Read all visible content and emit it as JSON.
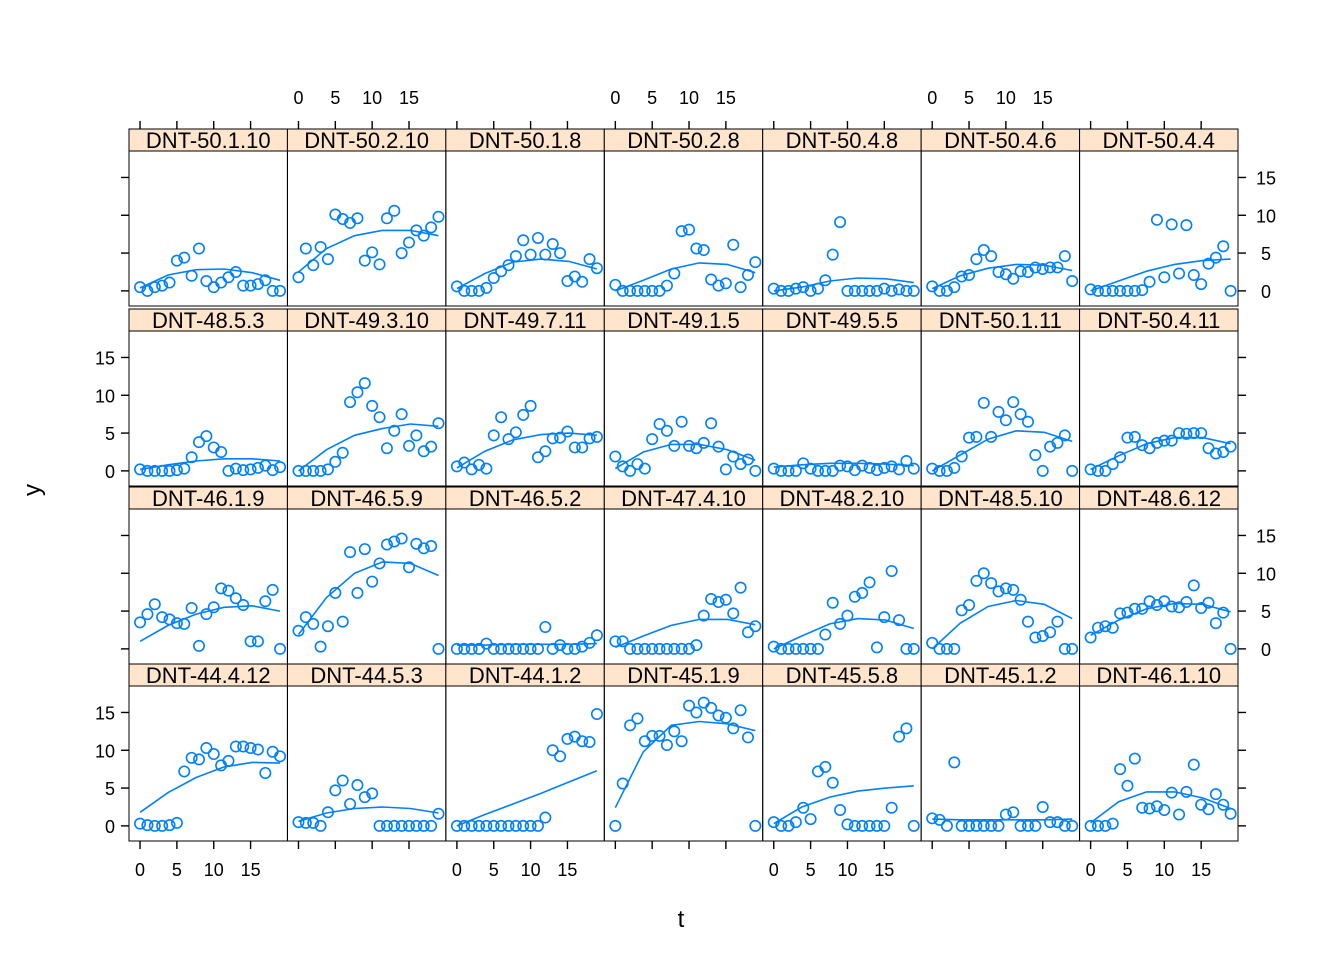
{
  "chart_data": {
    "type": "scatter",
    "layout": {
      "columns": 7,
      "rows": 4,
      "order": "bottom-left to top-right"
    },
    "xlabel": "t",
    "ylabel": "y",
    "xlim": [
      -1.5,
      20
    ],
    "ylim": [
      -2,
      18.5
    ],
    "x_ticks": [
      0,
      5,
      10,
      15
    ],
    "y_ticks": [
      0,
      5,
      10,
      15
    ],
    "x_ticks_bottom_columns": [
      0,
      2,
      4,
      6
    ],
    "x_ticks_top_columns": [
      1,
      3,
      5
    ],
    "y_ticks_left_rows": [
      0,
      2
    ],
    "y_ticks_right_rows": [
      1,
      3
    ],
    "colors": {
      "points": "#0080ff",
      "strip": "#ffe5cc",
      "frame": "#000000"
    },
    "panels": [
      {
        "label": "DNT-44.4.12",
        "y": [
          0.3,
          0.1,
          0,
          0,
          0.1,
          0.4,
          7.2,
          9,
          8.8,
          10.3,
          9.5,
          8,
          8.6,
          10.5,
          10.5,
          10.3,
          10.1,
          7,
          9.8,
          9.2
        ],
        "fit": [
          1.8,
          4.4,
          6.4,
          7.8,
          8.4,
          8.3
        ]
      },
      {
        "label": "DNT-44.5.3",
        "y": [
          0.5,
          0.4,
          0.4,
          0,
          1.8,
          4.7,
          6,
          2.9,
          5.4,
          3.8,
          4.3,
          0,
          0,
          0,
          0,
          0,
          0,
          0,
          0,
          1.6
        ],
        "fit": [
          0.6,
          1.7,
          2.3,
          2.5,
          2.3,
          1.7
        ]
      },
      {
        "label": "DNT-44.1.2",
        "y": [
          0,
          0,
          0,
          0,
          0,
          0,
          0,
          0,
          0,
          0,
          0,
          0,
          1.1,
          10,
          9.2,
          11.5,
          11.8,
          11.2,
          11.1,
          14.8
        ],
        "fit": [
          0,
          1.5,
          2.9,
          4.3,
          5.8,
          7.3
        ]
      },
      {
        "label": "DNT-45.1.9",
        "y": [
          0,
          5.6,
          13.3,
          14.2,
          11.2,
          11.9,
          11.9,
          10.7,
          12.5,
          11.2,
          15.9,
          15,
          16.3,
          15.6,
          14.6,
          14.3,
          12.9,
          15.3,
          11.7,
          0
        ],
        "fit": [
          2.4,
          9.8,
          13.3,
          13.8,
          13.5,
          12.6
        ]
      },
      {
        "label": "DNT-45.5.8",
        "y": [
          0.5,
          0,
          0,
          0.5,
          2.4,
          0.9,
          7.2,
          7.8,
          5.7,
          2.1,
          0.2,
          0,
          0,
          0,
          0,
          0,
          2.4,
          11.8,
          12.9,
          0
        ],
        "fit": [
          0.3,
          2.5,
          3.8,
          4.6,
          5,
          5.3
        ]
      },
      {
        "label": "DNT-45.1.2",
        "y": [
          1,
          0.8,
          0,
          8.4,
          0,
          0,
          0,
          0,
          0,
          0,
          1.5,
          1.8,
          0,
          0,
          0,
          2.5,
          0.5,
          0.5,
          0,
          0
        ],
        "fit": [
          0.9,
          0.8,
          0.8,
          0.8,
          0.8,
          0.9
        ]
      },
      {
        "label": "DNT-46.1.10",
        "y": [
          0,
          0,
          0,
          0.3,
          7.5,
          5.3,
          8.9,
          2.4,
          2.3,
          2.6,
          2.1,
          4.4,
          1.5,
          4.5,
          8.1,
          2.8,
          2.2,
          4.2,
          2.8,
          1.6
        ],
        "fit": [
          0.4,
          3.2,
          4.5,
          4.5,
          3.7,
          2.3
        ]
      },
      {
        "label": "DNT-46.1.9",
        "y": [
          3.5,
          4.6,
          5.9,
          4.2,
          3.9,
          3.4,
          3.3,
          5.4,
          0.4,
          4.6,
          5.5,
          8,
          7.7,
          6.7,
          5.8,
          1,
          1,
          6.3,
          7.8,
          0
        ],
        "fit": [
          1,
          3.1,
          4.6,
          5.5,
          5.7,
          5
        ]
      },
      {
        "label": "DNT-46.5.9",
        "y": [
          2.4,
          4.2,
          3.3,
          0.3,
          3,
          7.4,
          3.6,
          12.8,
          7.4,
          13.2,
          8.9,
          11.3,
          13.8,
          14.2,
          14.6,
          10.8,
          13.9,
          13.3,
          13.6,
          0
        ],
        "fit": [
          1.9,
          6.8,
          10,
          11.5,
          11.3,
          9.7
        ]
      },
      {
        "label": "DNT-46.5.2",
        "y": [
          0,
          0,
          0,
          0,
          0.7,
          0,
          0,
          0,
          0,
          0,
          0,
          0,
          2.9,
          0,
          0.5,
          0,
          0,
          0.3,
          0.8,
          1.8
        ],
        "fit": [
          0.5,
          0.5,
          0.6,
          0.6,
          0.6,
          0.7
        ]
      },
      {
        "label": "DNT-47.4.10",
        "y": [
          1,
          1,
          0,
          0,
          0,
          0,
          0,
          0,
          0,
          0,
          0,
          0.5,
          4.4,
          6.6,
          6.2,
          6.5,
          4.7,
          8.1,
          2.2,
          3
        ],
        "fit": [
          0.2,
          1.7,
          3.1,
          3.9,
          3.9,
          3.2
        ]
      },
      {
        "label": "DNT-48.2.10",
        "y": [
          0.3,
          0,
          0,
          0,
          0,
          0,
          0,
          1.9,
          6.1,
          3.3,
          4.4,
          6.9,
          7.4,
          8.8,
          0.2,
          4.2,
          10.3,
          3.8,
          0,
          0
        ],
        "fit": [
          0,
          1.7,
          3.3,
          4,
          3.8,
          2.7
        ]
      },
      {
        "label": "DNT-48.5.10",
        "y": [
          0.8,
          0,
          0,
          0,
          5.1,
          5.8,
          9,
          10,
          8.7,
          7.6,
          8,
          7.8,
          6.5,
          3.6,
          1.5,
          1.7,
          2.2,
          3.6,
          0,
          0
        ],
        "fit": [
          0,
          3.4,
          5.6,
          6.4,
          5.9,
          4
        ]
      },
      {
        "label": "DNT-48.6.12",
        "y": [
          1.5,
          2.8,
          3,
          2.8,
          4.7,
          4.8,
          5.3,
          5.3,
          6.3,
          5.8,
          6.3,
          5.6,
          5.5,
          6.2,
          8.4,
          5.4,
          6.1,
          3.4,
          4.8,
          0
        ],
        "fit": [
          1.8,
          3.8,
          5.3,
          6,
          5.9,
          4.9
        ]
      },
      {
        "label": "DNT-48.5.3",
        "y": [
          0.2,
          0,
          0,
          0,
          0,
          0.1,
          0.3,
          1.8,
          3.8,
          4.6,
          3.1,
          2.5,
          0,
          0.3,
          0.1,
          0.2,
          0.4,
          0.7,
          0.1,
          0.5
        ],
        "fit": [
          0.2,
          0.8,
          1.3,
          1.6,
          1.6,
          1.3
        ]
      },
      {
        "label": "DNT-49.3.10",
        "y": [
          0,
          0,
          0,
          0,
          0.2,
          1.2,
          2.4,
          9.1,
          10.4,
          11.6,
          8.6,
          7.1,
          3,
          5.3,
          7.5,
          3.3,
          4.7,
          2.6,
          3.2,
          6.3
        ],
        "fit": [
          0,
          2.8,
          4.7,
          5.6,
          6.2,
          5.9
        ]
      },
      {
        "label": "DNT-49.7.11",
        "y": [
          0.6,
          1.1,
          0.2,
          0.8,
          0.3,
          4.7,
          7.1,
          4.2,
          5.1,
          7.4,
          8.6,
          1.8,
          2.6,
          4.3,
          4.4,
          5.2,
          3.1,
          3.1,
          4.3,
          4.5
        ],
        "fit": [
          0.4,
          2.6,
          4.1,
          4.8,
          5,
          4.7
        ]
      },
      {
        "label": "DNT-49.1.5",
        "y": [
          1.9,
          0.6,
          0,
          0.9,
          0.3,
          4.2,
          6.2,
          5.3,
          3.3,
          6.5,
          3.3,
          3,
          3.7,
          6.3,
          3.2,
          0.2,
          1.9,
          0.9,
          1.5,
          0
        ],
        "fit": [
          0.3,
          2.5,
          3.5,
          3.5,
          2.8,
          1.4
        ]
      },
      {
        "label": "DNT-49.5.5",
        "y": [
          0.3,
          0,
          0,
          0,
          1,
          0.3,
          0,
          0,
          0,
          0.7,
          0.6,
          0.1,
          0.7,
          0.4,
          0.1,
          0.4,
          0.6,
          0.2,
          1.3,
          0.3
        ],
        "fit": [
          0.5,
          0.8,
          1,
          1,
          0.9,
          0.7
        ]
      },
      {
        "label": "DNT-50.1.11",
        "y": [
          0.3,
          0,
          0,
          0.4,
          1.9,
          4.4,
          4.5,
          9,
          4.5,
          7.8,
          6.7,
          9.1,
          7.5,
          6.5,
          2.1,
          0,
          3.2,
          3.7,
          4.7,
          0
        ],
        "fit": [
          0,
          2.1,
          4.2,
          5.3,
          5.1,
          3.9
        ]
      },
      {
        "label": "DNT-50.4.11",
        "y": [
          0.2,
          0,
          0,
          0.9,
          1.8,
          4.4,
          4.5,
          3.4,
          3,
          3.7,
          4,
          4,
          5,
          4.9,
          5,
          5,
          3,
          2.3,
          2.5,
          3.2
        ],
        "fit": [
          0.2,
          2,
          3.6,
          4.4,
          4.4,
          3.6
        ]
      },
      {
        "label": "DNT-50.1.10",
        "y": [
          0.5,
          0,
          0.5,
          0.7,
          1.1,
          4,
          4.4,
          2,
          5.6,
          1.3,
          0.5,
          1.1,
          1.8,
          2.5,
          0.7,
          0.7,
          0.9,
          1.4,
          0,
          0
        ],
        "fit": [
          0.4,
          2.1,
          2.8,
          2.9,
          2.4,
          1.4
        ]
      },
      {
        "label": "DNT-50.2.10",
        "y": [
          1.8,
          5.6,
          3.4,
          5.8,
          4.2,
          10.1,
          9.5,
          9,
          9.6,
          4,
          5.1,
          3.5,
          9.6,
          10.6,
          5,
          6.4,
          8,
          7.3,
          8.4,
          9.8
        ],
        "fit": [
          2.5,
          5.6,
          7.3,
          8,
          8,
          7.3
        ]
      },
      {
        "label": "DNT-50.1.8",
        "y": [
          0.6,
          0,
          0,
          0,
          0.4,
          1.7,
          2.6,
          3.4,
          4.6,
          6.7,
          4.8,
          7,
          4.8,
          6.2,
          5,
          1.3,
          1.9,
          1.2,
          4.2,
          3
        ],
        "fit": [
          0.3,
          2.3,
          3.8,
          4.2,
          3.9,
          2.9
        ]
      },
      {
        "label": "DNT-50.2.8",
        "y": [
          0.8,
          0,
          0,
          0,
          0,
          0,
          0,
          0.7,
          2.3,
          7.9,
          8.1,
          5.6,
          5.4,
          1.5,
          0.7,
          1,
          6.1,
          0.5,
          2.1,
          3.8
        ],
        "fit": [
          0,
          1.4,
          2.9,
          3.7,
          3.5,
          2.4
        ]
      },
      {
        "label": "DNT-50.4.8",
        "y": [
          0.3,
          0,
          0,
          0.3,
          0.5,
          0,
          0.3,
          1.4,
          4.8,
          9.1,
          0,
          0,
          0,
          0,
          0,
          0.3,
          0,
          0.2,
          0,
          0
        ],
        "fit": [
          0,
          0.5,
          1.3,
          1.7,
          1.6,
          1.1
        ]
      },
      {
        "label": "DNT-50.4.6",
        "y": [
          0.6,
          0,
          0,
          0.5,
          1.9,
          2.1,
          4.2,
          5.4,
          4.6,
          2.5,
          2.2,
          1.6,
          2.6,
          2.5,
          3.1,
          2.9,
          3.1,
          3.1,
          4.6,
          1.3
        ],
        "fit": [
          0.3,
          2,
          3,
          3.5,
          3.4,
          2.7
        ]
      },
      {
        "label": "DNT-50.4.4",
        "y": [
          0.2,
          0,
          0,
          0,
          0,
          0,
          0,
          0.1,
          1.2,
          9.4,
          1.8,
          8.8,
          2.3,
          8.7,
          2.1,
          0.9,
          3.6,
          4.4,
          5.9,
          0
        ],
        "fit": [
          0,
          1.3,
          2.6,
          3.5,
          4,
          4.2
        ]
      }
    ]
  }
}
